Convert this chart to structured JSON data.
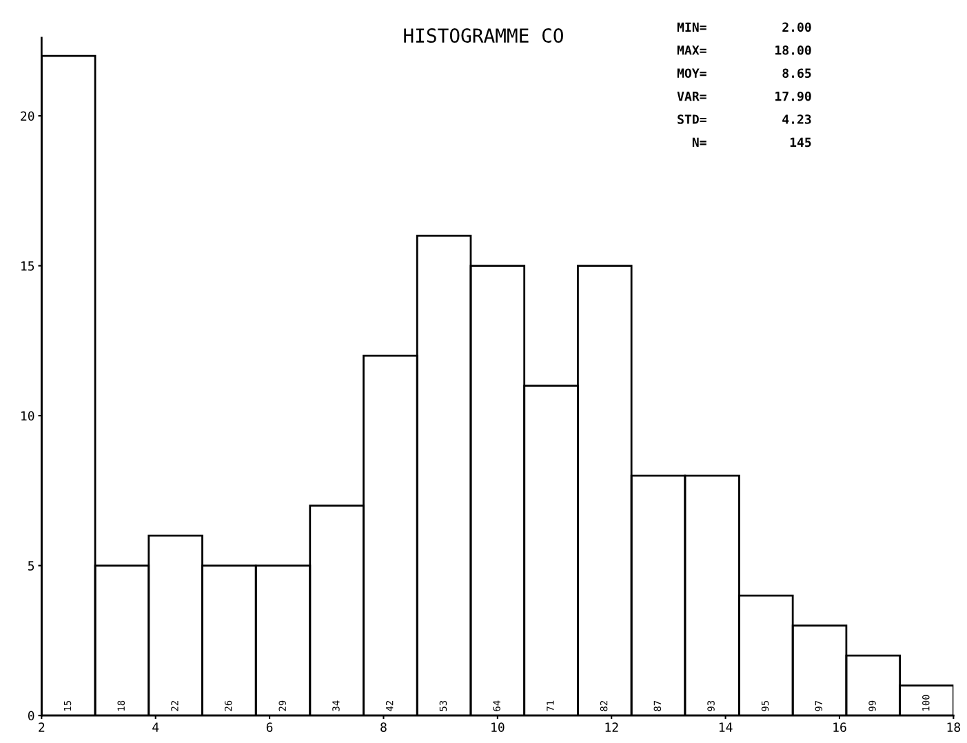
{
  "chart_data": {
    "type": "histogram",
    "title": "HISTOGRAMME CO",
    "bins": [
      2,
      2.94,
      3.88,
      4.82,
      5.76,
      6.71,
      7.65,
      8.59,
      9.53,
      10.47,
      11.41,
      12.35,
      13.29,
      14.24,
      15.18,
      16.12,
      17.06,
      18
    ],
    "values": [
      22,
      5,
      6,
      5,
      5,
      7,
      12,
      16,
      15,
      11,
      15,
      8,
      8,
      4,
      3,
      2,
      1
    ],
    "color": "#000000",
    "xlim": [
      2,
      18
    ],
    "xticks": [
      2,
      4,
      6,
      8,
      10,
      12,
      14,
      16,
      18
    ],
    "ylim": [
      0,
      22.6
    ],
    "yticks": [
      0,
      5,
      10,
      15,
      20
    ],
    "grid": false,
    "annotations": [
      "MIN=          2.00",
      "MAX=         18.00",
      "MOY=          8.65",
      "VAR=         17.90",
      "STD=          4.23",
      "  N=           145",
      {
        "text": "15",
        "x": 2.47,
        "y": 0
      },
      {
        "text": "18",
        "x": 3.41,
        "y": 0
      },
      {
        "text": "22",
        "x": 4.35,
        "y": 0
      },
      {
        "text": "26",
        "x": 5.29,
        "y": 0
      },
      {
        "text": "29",
        "x": 6.24,
        "y": 0
      },
      {
        "text": "34",
        "x": 7.18,
        "y": 0
      },
      {
        "text": "42",
        "x": 8.12,
        "y": 0
      },
      {
        "text": "53",
        "x": 9.06,
        "y": 0
      },
      {
        "text": "64",
        "x": 10,
        "y": 0
      },
      {
        "text": "71",
        "x": 10.94,
        "y": 0
      },
      {
        "text": "82",
        "x": 11.88,
        "y": 0
      },
      {
        "text": "87",
        "x": 12.82,
        "y": 0
      },
      {
        "text": "93",
        "x": 13.76,
        "y": 0
      },
      {
        "text": "95",
        "x": 14.71,
        "y": 0
      },
      {
        "text": "97",
        "x": 15.65,
        "y": 0
      },
      {
        "text": "99",
        "x": 16.59,
        "y": 0
      },
      {
        "text": "100",
        "x": 17.53,
        "y": 0
      }
    ]
  }
}
